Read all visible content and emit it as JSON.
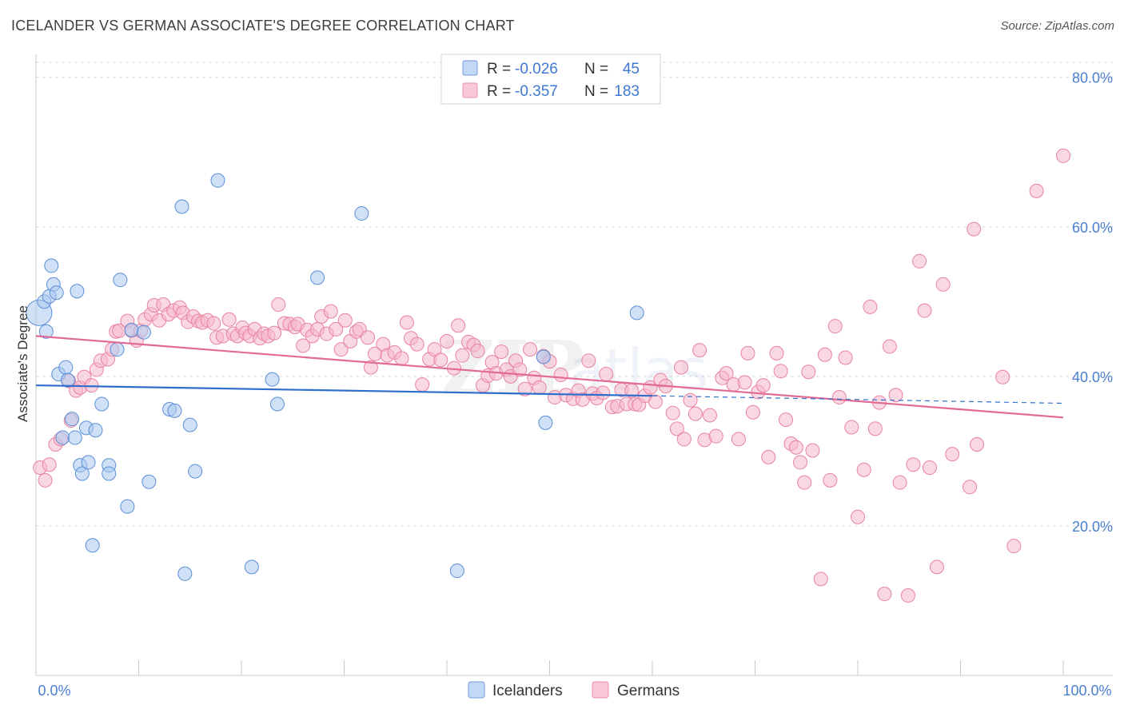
{
  "title": "ICELANDER VS GERMAN ASSOCIATE'S DEGREE CORRELATION CHART",
  "source": "Source: ZipAtlas.com",
  "watermark": {
    "zip": "ZIP",
    "atlas": "atlas"
  },
  "colors": {
    "blue_fill": "#a9c8f0",
    "blue_stroke": "#5b8fd6",
    "blue_line": "#2f6fcc",
    "pink_fill": "#f5b8cc",
    "pink_stroke": "#e8839f",
    "pink_line": "#e26b95",
    "tick_blue": "#4a7fd1",
    "grid": "#d9d9d9"
  },
  "legend_box": {
    "rows": [
      {
        "r_label": "R = ",
        "r_value": "-0.026",
        "n_label": "N = ",
        "n_value": "45"
      },
      {
        "r_label": "R = ",
        "r_value": "-0.357",
        "n_label": "N = ",
        "n_value": "183"
      }
    ]
  },
  "chart_data": {
    "type": "scatter",
    "title": "ICELANDER VS GERMAN ASSOCIATE'S DEGREE CORRELATION CHART",
    "xlabel": "",
    "ylabel": "Associate's Degree",
    "xlim": [
      0,
      100
    ],
    "ylim": [
      0,
      82
    ],
    "x_tick_labels": [
      "0.0%",
      "100.0%"
    ],
    "y_ticks": [
      20,
      40,
      60,
      80
    ],
    "y_tick_labels": [
      "20.0%",
      "40.0%",
      "60.0%",
      "80.0%"
    ],
    "grid": true,
    "legend": [
      "Icelanders",
      "Germans"
    ],
    "series": [
      {
        "name": "Icelanders",
        "r": -0.026,
        "n": 45,
        "trend": {
          "x": [
            0,
            60
          ],
          "y": [
            38.8,
            37.4
          ]
        },
        "trend_dashed": {
          "x": [
            60,
            100
          ],
          "y": [
            37.4,
            36.4
          ]
        },
        "points": [
          [
            0.3,
            48.5
          ],
          [
            0.8,
            50
          ],
          [
            1,
            46
          ],
          [
            1.3,
            50.7
          ],
          [
            1.5,
            54.8
          ],
          [
            1.7,
            52.3
          ],
          [
            2,
            51.2
          ],
          [
            2.2,
            40.3
          ],
          [
            2.6,
            31.8
          ],
          [
            2.9,
            41.2
          ],
          [
            3.1,
            39.5
          ],
          [
            3.5,
            34.3
          ],
          [
            3.8,
            31.8
          ],
          [
            4,
            51.4
          ],
          [
            4.3,
            28.1
          ],
          [
            4.5,
            27
          ],
          [
            4.9,
            33.1
          ],
          [
            5.1,
            28.5
          ],
          [
            5.5,
            17.4
          ],
          [
            5.8,
            32.8
          ],
          [
            6.4,
            36.3
          ],
          [
            7.1,
            28.1
          ],
          [
            7.1,
            27
          ],
          [
            7.9,
            43.6
          ],
          [
            8.2,
            52.9
          ],
          [
            8.9,
            22.6
          ],
          [
            9.3,
            46.2
          ],
          [
            10.5,
            45.9
          ],
          [
            11,
            25.9
          ],
          [
            13,
            35.6
          ],
          [
            13.5,
            35.4
          ],
          [
            14.2,
            62.7
          ],
          [
            14.5,
            13.6
          ],
          [
            15,
            33.5
          ],
          [
            15.5,
            27.3
          ],
          [
            17.7,
            66.2
          ],
          [
            21,
            14.5
          ],
          [
            23,
            39.6
          ],
          [
            23.5,
            36.3
          ],
          [
            27.4,
            53.2
          ],
          [
            31.7,
            61.8
          ],
          [
            41,
            14
          ],
          [
            49.4,
            42.6
          ],
          [
            49.6,
            33.8
          ],
          [
            58.5,
            48.5
          ]
        ]
      },
      {
        "name": "Germans",
        "r": -0.357,
        "n": 183,
        "trend": {
          "x": [
            0,
            100
          ],
          "y": [
            45.4,
            34.5
          ]
        },
        "points": [
          [
            0.4,
            27.8
          ],
          [
            0.9,
            26.1
          ],
          [
            1.3,
            28.2
          ],
          [
            1.9,
            30.9
          ],
          [
            2.4,
            31.6
          ],
          [
            3.2,
            39.4
          ],
          [
            3.4,
            34.1
          ],
          [
            3.9,
            38.1
          ],
          [
            4.3,
            38.5
          ],
          [
            4.7,
            39.9
          ],
          [
            5.4,
            38.8
          ],
          [
            5.9,
            40.9
          ],
          [
            6.3,
            42.1
          ],
          [
            7,
            42.3
          ],
          [
            7.4,
            43.6
          ],
          [
            7.8,
            46
          ],
          [
            8.1,
            46.1
          ],
          [
            8.9,
            47.4
          ],
          [
            9.3,
            46.1
          ],
          [
            9.8,
            44.8
          ],
          [
            10.2,
            46.1
          ],
          [
            10.6,
            47.6
          ],
          [
            11.2,
            48.3
          ],
          [
            11.5,
            49.5
          ],
          [
            12,
            47.5
          ],
          [
            12.4,
            49.6
          ],
          [
            12.9,
            48.3
          ],
          [
            13.4,
            48.8
          ],
          [
            14,
            49.2
          ],
          [
            14.3,
            48.5
          ],
          [
            14.8,
            47.3
          ],
          [
            15.3,
            48
          ],
          [
            15.8,
            47.4
          ],
          [
            16.2,
            47.2
          ],
          [
            16.7,
            47.5
          ],
          [
            17.3,
            47.1
          ],
          [
            17.6,
            45.2
          ],
          [
            18.2,
            45.4
          ],
          [
            18.8,
            47.6
          ],
          [
            19.2,
            45.7
          ],
          [
            19.6,
            45.4
          ],
          [
            20.1,
            46.5
          ],
          [
            20.4,
            45.8
          ],
          [
            20.8,
            45.4
          ],
          [
            21.3,
            46.3
          ],
          [
            21.8,
            45.1
          ],
          [
            22.2,
            45.7
          ],
          [
            22.6,
            45.4
          ],
          [
            23.2,
            45.8
          ],
          [
            23.6,
            49.6
          ],
          [
            24.2,
            47.1
          ],
          [
            24.7,
            47
          ],
          [
            25.2,
            46.6
          ],
          [
            25.5,
            47
          ],
          [
            26,
            44.1
          ],
          [
            26.4,
            46.2
          ],
          [
            26.9,
            45.4
          ],
          [
            27.4,
            46.3
          ],
          [
            27.8,
            48
          ],
          [
            28.3,
            45.7
          ],
          [
            28.7,
            48.7
          ],
          [
            29.2,
            46.3
          ],
          [
            29.7,
            43.6
          ],
          [
            30.1,
            47.5
          ],
          [
            30.6,
            44.7
          ],
          [
            31.2,
            46
          ],
          [
            31.5,
            46.3
          ],
          [
            32.3,
            45.2
          ],
          [
            32.6,
            41.2
          ],
          [
            33,
            43
          ],
          [
            33.8,
            44.3
          ],
          [
            34.2,
            42.8
          ],
          [
            34.9,
            43.2
          ],
          [
            35.6,
            42.4
          ],
          [
            36.1,
            47.2
          ],
          [
            36.5,
            45.1
          ],
          [
            37.1,
            44.3
          ],
          [
            37.6,
            38.9
          ],
          [
            38.3,
            42.3
          ],
          [
            38.8,
            43.6
          ],
          [
            39.4,
            42.2
          ],
          [
            40,
            44.7
          ],
          [
            40.7,
            41.1
          ],
          [
            41.1,
            46.8
          ],
          [
            41.5,
            42.8
          ],
          [
            42.1,
            44.6
          ],
          [
            42.6,
            44.2
          ],
          [
            43,
            43.4
          ],
          [
            43.5,
            38.8
          ],
          [
            44,
            40.1
          ],
          [
            44.4,
            41.9
          ],
          [
            44.8,
            40.4
          ],
          [
            45.3,
            43.3
          ],
          [
            45.8,
            40.9
          ],
          [
            46.2,
            40
          ],
          [
            46.7,
            42.1
          ],
          [
            47.1,
            40.9
          ],
          [
            47.6,
            38.3
          ],
          [
            48.1,
            43.6
          ],
          [
            48.5,
            39.8
          ],
          [
            49,
            38.5
          ],
          [
            49.4,
            42.7
          ],
          [
            50,
            42
          ],
          [
            50.5,
            37.2
          ],
          [
            51.1,
            40.2
          ],
          [
            51.6,
            37.5
          ],
          [
            52.3,
            37
          ],
          [
            52.8,
            38.1
          ],
          [
            53.2,
            36.9
          ],
          [
            53.8,
            42.1
          ],
          [
            54.2,
            37.7
          ],
          [
            54.6,
            37.1
          ],
          [
            55.2,
            37.8
          ],
          [
            55.5,
            40.3
          ],
          [
            56.1,
            35.9
          ],
          [
            56.6,
            36
          ],
          [
            57,
            38.2
          ],
          [
            57.5,
            36.3
          ],
          [
            58,
            38.1
          ],
          [
            58.3,
            36.3
          ],
          [
            58.7,
            36.2
          ],
          [
            59.3,
            37.4
          ],
          [
            59.8,
            38.5
          ],
          [
            60.3,
            36.6
          ],
          [
            60.8,
            39.5
          ],
          [
            61.3,
            38.7
          ],
          [
            62,
            35.1
          ],
          [
            62.4,
            33
          ],
          [
            62.8,
            41.2
          ],
          [
            63.1,
            31.6
          ],
          [
            63.7,
            36.8
          ],
          [
            64.2,
            35
          ],
          [
            64.6,
            43.5
          ],
          [
            65.1,
            31.5
          ],
          [
            65.6,
            34.8
          ],
          [
            66.2,
            32
          ],
          [
            66.8,
            39.8
          ],
          [
            67.2,
            40.4
          ],
          [
            67.9,
            38.9
          ],
          [
            68.4,
            31.6
          ],
          [
            69,
            39.2
          ],
          [
            69.3,
            43.1
          ],
          [
            69.8,
            35.2
          ],
          [
            70.3,
            37.9
          ],
          [
            70.8,
            38.8
          ],
          [
            71.3,
            29.2
          ],
          [
            72.1,
            43.1
          ],
          [
            72.5,
            40.7
          ],
          [
            73,
            34.2
          ],
          [
            73.5,
            31
          ],
          [
            74,
            30.5
          ],
          [
            74.4,
            28.5
          ],
          [
            74.8,
            25.8
          ],
          [
            75.2,
            40.6
          ],
          [
            75.6,
            30.1
          ],
          [
            76.4,
            12.9
          ],
          [
            76.8,
            42.9
          ],
          [
            77.3,
            26.1
          ],
          [
            77.8,
            46.7
          ],
          [
            78.2,
            37.2
          ],
          [
            78.8,
            42.5
          ],
          [
            79.4,
            33.2
          ],
          [
            80,
            21.2
          ],
          [
            80.6,
            27.5
          ],
          [
            81.2,
            49.3
          ],
          [
            81.7,
            33
          ],
          [
            82.1,
            36.5
          ],
          [
            82.6,
            10.9
          ],
          [
            83.1,
            44
          ],
          [
            83.7,
            37.5
          ],
          [
            84.1,
            25.8
          ],
          [
            84.9,
            10.7
          ],
          [
            85.4,
            28.2
          ],
          [
            86,
            55.4
          ],
          [
            86.5,
            48.8
          ],
          [
            87,
            27.8
          ],
          [
            87.7,
            14.5
          ],
          [
            88.3,
            52.3
          ],
          [
            89.2,
            29.6
          ],
          [
            90.9,
            25.2
          ],
          [
            91.3,
            59.7
          ],
          [
            91.6,
            30.9
          ],
          [
            94.1,
            39.9
          ],
          [
            95.2,
            17.3
          ],
          [
            97.4,
            64.8
          ],
          [
            100,
            69.5
          ]
        ]
      }
    ]
  }
}
